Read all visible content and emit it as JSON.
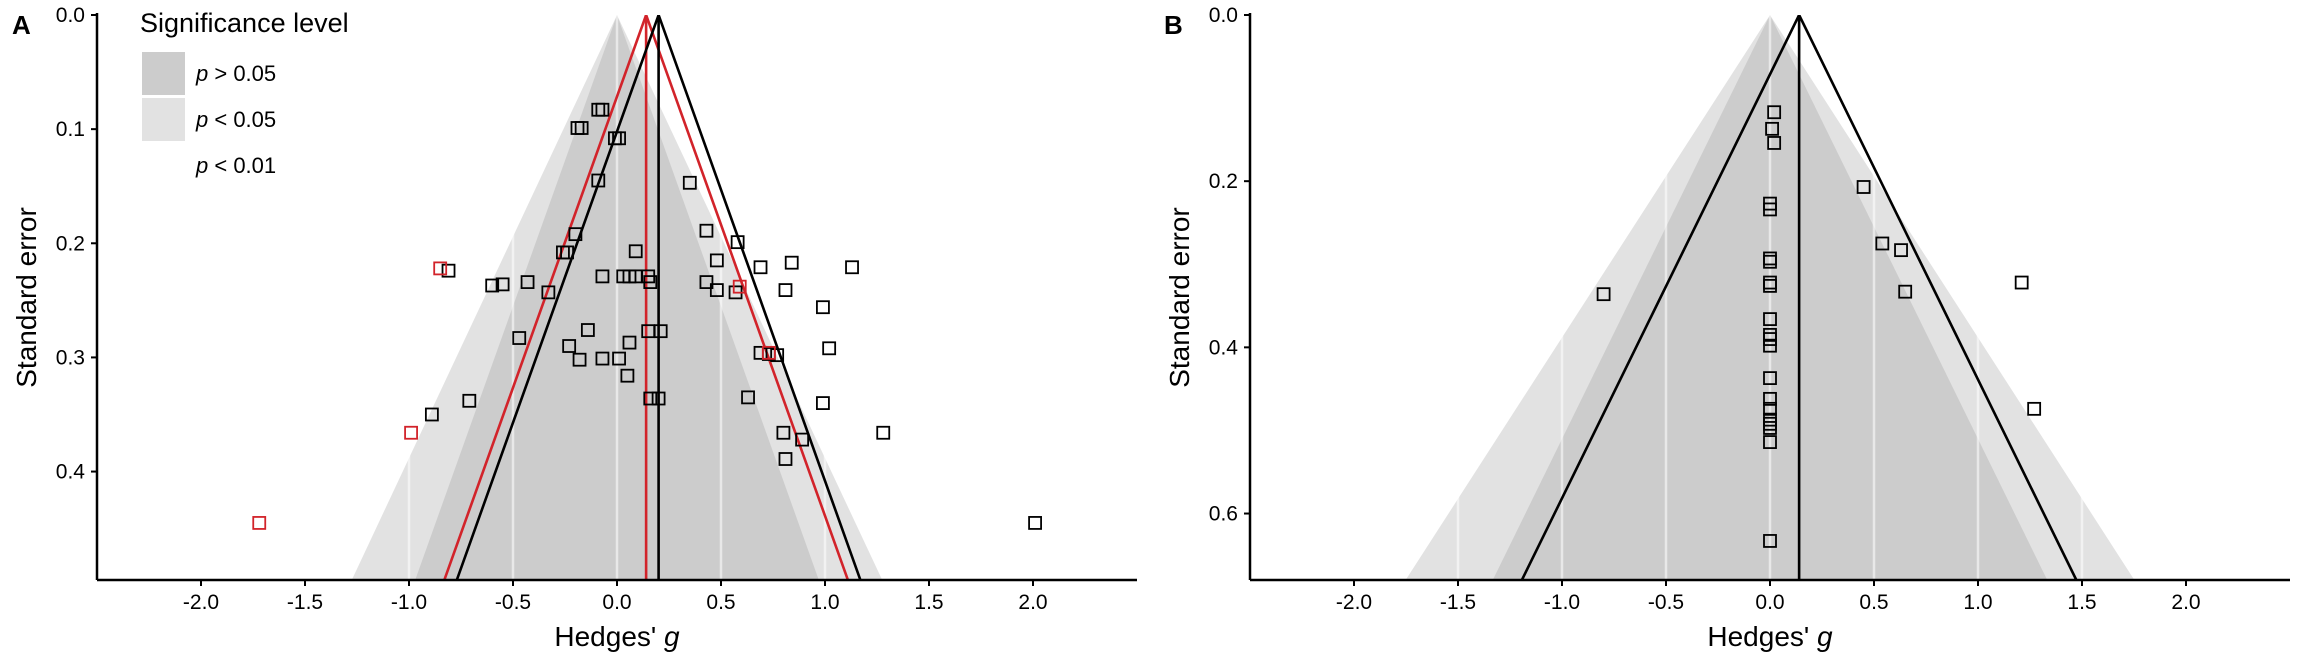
{
  "chart_data": [
    {
      "type": "scatter",
      "panel_label": "A",
      "xlabel": "Hedges'",
      "xlabel_italic": "g",
      "ylabel": "Standard error",
      "xlim": [
        -2.5,
        2.5
      ],
      "ylim": [
        0,
        0.495
      ],
      "y_reversed": true,
      "grid": "vertical",
      "x_ticks": [
        "-2.0",
        "-1.5",
        "-1.0",
        "-0.5",
        "0.0",
        "0.5",
        "1.0",
        "1.5",
        "2.0"
      ],
      "x_tick_values": [
        -2,
        -1.5,
        -1,
        -0.5,
        0,
        0.5,
        1,
        1.5,
        2
      ],
      "y_ticks": [
        "0.0",
        "0.1",
        "0.2",
        "0.3",
        "0.4"
      ],
      "y_tick_values": [
        0,
        0.1,
        0.2,
        0.3,
        0.4
      ],
      "contour_center": 0,
      "contour_z": {
        "p05": 1.96,
        "p01": 2.576
      },
      "pooled_effect": 0.2,
      "adjusted_pooled_effect": 0.14,
      "legend": {
        "title": "Significance level",
        "entries": [
          {
            "prefix": "p",
            "text": " > 0.05",
            "color": "#cccccc"
          },
          {
            "prefix": "p",
            "text": " < 0.05",
            "color": "#e2e2e2"
          },
          {
            "prefix": "p",
            "text": " < 0.01",
            "color": "#ffffff"
          }
        ]
      },
      "series": [
        {
          "role": "observed",
          "points": [
            [
              -0.09,
              0.083
            ],
            [
              -0.07,
              0.083
            ],
            [
              -0.19,
              0.099
            ],
            [
              -0.17,
              0.099
            ],
            [
              -0.01,
              0.108
            ],
            [
              0.01,
              0.108
            ],
            [
              -0.09,
              0.145
            ],
            [
              0.35,
              0.147
            ],
            [
              -0.2,
              0.192
            ],
            [
              0.43,
              0.189
            ],
            [
              0.58,
              0.199
            ],
            [
              -0.26,
              0.208
            ],
            [
              -0.24,
              0.208
            ],
            [
              0.09,
              0.207
            ],
            [
              0.48,
              0.215
            ],
            [
              -0.81,
              0.224
            ],
            [
              0.69,
              0.221
            ],
            [
              0.84,
              0.217
            ],
            [
              1.13,
              0.221
            ],
            [
              -0.6,
              0.237
            ],
            [
              -0.55,
              0.236
            ],
            [
              -0.43,
              0.234
            ],
            [
              -0.07,
              0.229
            ],
            [
              0.03,
              0.229
            ],
            [
              0.06,
              0.229
            ],
            [
              0.09,
              0.229
            ],
            [
              0.15,
              0.229
            ],
            [
              0.16,
              0.234
            ],
            [
              0.43,
              0.234
            ],
            [
              -0.33,
              0.243
            ],
            [
              0.48,
              0.241
            ],
            [
              0.57,
              0.243
            ],
            [
              0.81,
              0.241
            ],
            [
              0.99,
              0.256
            ],
            [
              0.15,
              0.277
            ],
            [
              0.21,
              0.277
            ],
            [
              -0.14,
              0.276
            ],
            [
              -0.47,
              0.283
            ],
            [
              -0.23,
              0.29
            ],
            [
              0.06,
              0.287
            ],
            [
              -0.18,
              0.302
            ],
            [
              -0.07,
              0.301
            ],
            [
              0.01,
              0.301
            ],
            [
              0.69,
              0.296
            ],
            [
              0.73,
              0.297
            ],
            [
              0.77,
              0.298
            ],
            [
              1.02,
              0.292
            ],
            [
              0.05,
              0.316
            ],
            [
              -0.71,
              0.338
            ],
            [
              0.16,
              0.336
            ],
            [
              0.2,
              0.336
            ],
            [
              0.63,
              0.335
            ],
            [
              0.99,
              0.34
            ],
            [
              -0.89,
              0.35
            ],
            [
              0.8,
              0.366
            ],
            [
              0.89,
              0.372
            ],
            [
              1.28,
              0.366
            ],
            [
              0.81,
              0.389
            ],
            [
              2.01,
              0.445
            ]
          ]
        },
        {
          "role": "imputed",
          "points": [
            [
              -0.85,
              0.222
            ],
            [
              -0.99,
              0.366
            ],
            [
              -1.72,
              0.445
            ],
            [
              0.59,
              0.238
            ],
            [
              0.73,
              0.296
            ]
          ]
        }
      ]
    },
    {
      "type": "scatter",
      "panel_label": "B",
      "xlabel": "Hedges'",
      "xlabel_italic": "g",
      "ylabel": "Standard error",
      "xlim": [
        -2.5,
        2.5
      ],
      "ylim": [
        0,
        0.68
      ],
      "y_reversed": true,
      "grid": "vertical",
      "x_ticks": [
        "-2.0",
        "-1.5",
        "-1.0",
        "-0.5",
        "0.0",
        "0.5",
        "1.0",
        "1.5",
        "2.0"
      ],
      "x_tick_values": [
        -2,
        -1.5,
        -1,
        -0.5,
        0,
        0.5,
        1,
        1.5,
        2
      ],
      "y_ticks": [
        "0.0",
        "0.2",
        "0.4",
        "0.6"
      ],
      "y_tick_values": [
        0,
        0.2,
        0.4,
        0.6
      ],
      "contour_center": 0,
      "contour_z": {
        "p05": 1.96,
        "p01": 2.576
      },
      "pooled_effect": 0.14,
      "series": [
        {
          "role": "observed",
          "points": [
            [
              0.02,
              0.117
            ],
            [
              0.01,
              0.137
            ],
            [
              0.02,
              0.154
            ],
            [
              0.0,
              0.227
            ],
            [
              0.0,
              0.234
            ],
            [
              0.45,
              0.207
            ],
            [
              0.0,
              0.293
            ],
            [
              0.0,
              0.297
            ],
            [
              0.54,
              0.275
            ],
            [
              0.63,
              0.283
            ],
            [
              0.0,
              0.322
            ],
            [
              0.0,
              0.326
            ],
            [
              -0.8,
              0.336
            ],
            [
              0.65,
              0.333
            ],
            [
              1.21,
              0.322
            ],
            [
              0.0,
              0.366
            ],
            [
              0.0,
              0.385
            ],
            [
              0.0,
              0.39
            ],
            [
              0.0,
              0.398
            ],
            [
              0.0,
              0.437
            ],
            [
              0.0,
              0.462
            ],
            [
              0.0,
              0.474
            ],
            [
              0.0,
              0.487
            ],
            [
              0.0,
              0.492
            ],
            [
              0.0,
              0.497
            ],
            [
              0.0,
              0.514
            ],
            [
              1.27,
              0.474
            ],
            [
              0.0,
              0.633
            ]
          ]
        }
      ]
    }
  ]
}
